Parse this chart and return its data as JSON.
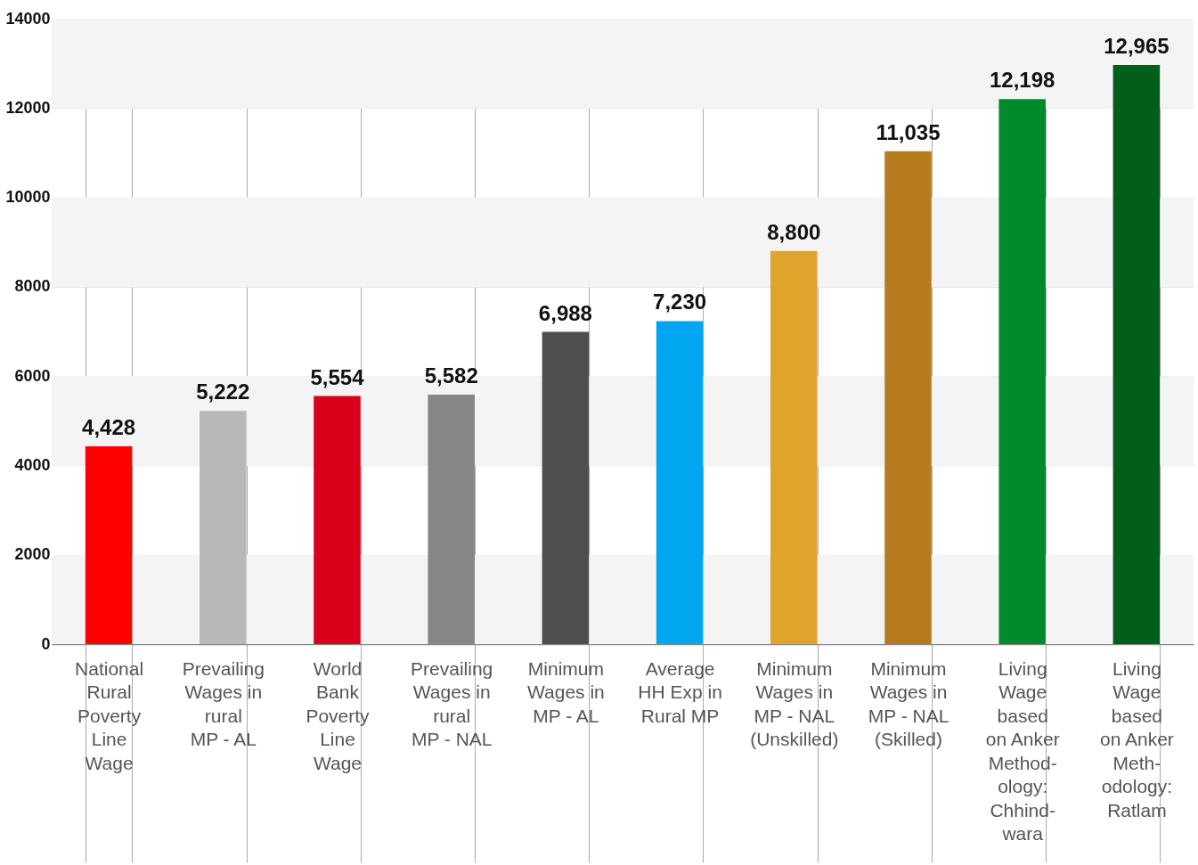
{
  "chart_data": {
    "type": "bar",
    "categories": [
      "National\nRural\nPoverty\nLine\nWage",
      "Prevailing\nWages in\nrural\nMP - AL",
      "World\nBank\nPoverty\nLine\nWage",
      "Prevailing\nWages in\nrural\nMP - NAL",
      "Minimum\nWages in\nMP - AL",
      "Average\nHH Exp in\nRural MP",
      "Minimum\nWages in\nMP - NAL\n(Unskilled)",
      "Minimum\nWages in\nMP - NAL\n(Skilled)",
      "Living\nWage\nbased\non Anker\nMethod-\nology:\nChhind-\nwara",
      "Living\nWage\nbased\non Anker\nMeth-\nodology:\nRatlam"
    ],
    "values": [
      4428,
      5222,
      5554,
      5582,
      6988,
      7230,
      8800,
      11035,
      12198,
      12965
    ],
    "colors": [
      "#ff0000",
      "#b7b8ba",
      "#d9001b",
      "#858688",
      "#4d4e50",
      "#00a6f0",
      "#e0a32c",
      "#b67b1f",
      "#008a2e",
      "#005e1b"
    ],
    "ylim": [
      0,
      14000
    ],
    "yticks": [
      0,
      2000,
      4000,
      6000,
      8000,
      10000,
      12000,
      14000
    ],
    "value_labels": [
      "4,428",
      "5,222",
      "5,554",
      "5,582",
      "6,988",
      "7,230",
      "8,800",
      "11,035",
      "12,198",
      "12,965"
    ],
    "grid": true
  }
}
